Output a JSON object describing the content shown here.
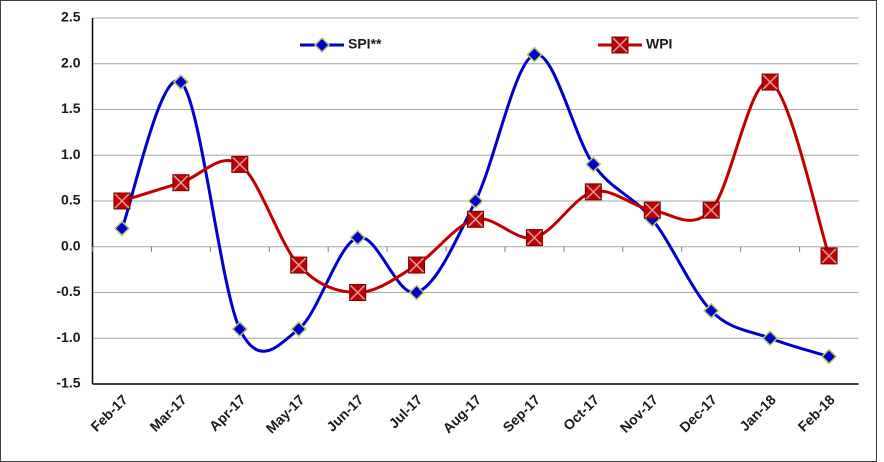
{
  "chart_data": {
    "type": "line",
    "categories": [
      "Feb-17",
      "Mar-17",
      "Apr-17",
      "May-17",
      "Jun-17",
      "Jul-17",
      "Aug-17",
      "Sep-17",
      "Oct-17",
      "Nov-17",
      "Dec-17",
      "Jan-18",
      "Feb-18"
    ],
    "series": [
      {
        "name": "SPI**",
        "color": "#0000cc",
        "marker": "diamond",
        "values": [
          0.2,
          1.8,
          -0.9,
          -0.9,
          0.1,
          -0.5,
          0.5,
          2.1,
          0.9,
          0.3,
          -0.7,
          -1.0,
          -1.2
        ]
      },
      {
        "name": "WPI",
        "color": "#c00000",
        "marker": "square",
        "values": [
          0.5,
          0.7,
          0.9,
          -0.2,
          -0.5,
          -0.2,
          0.3,
          0.1,
          0.6,
          0.4,
          0.4,
          1.8,
          -0.1
        ]
      }
    ],
    "ylim": [
      -1.5,
      2.5
    ],
    "yticks": [
      2.5,
      {
        "value": 2,
        "label": "2.0"
      },
      1.5,
      {
        "value": 1,
        "label": "1.0"
      },
      0.5,
      {
        "value": 0,
        "label": "0.0"
      },
      -0.5,
      {
        "value": -1,
        "label": "-1.0"
      },
      -1.5
    ],
    "grid": true,
    "smooth": true,
    "legend": "top"
  }
}
